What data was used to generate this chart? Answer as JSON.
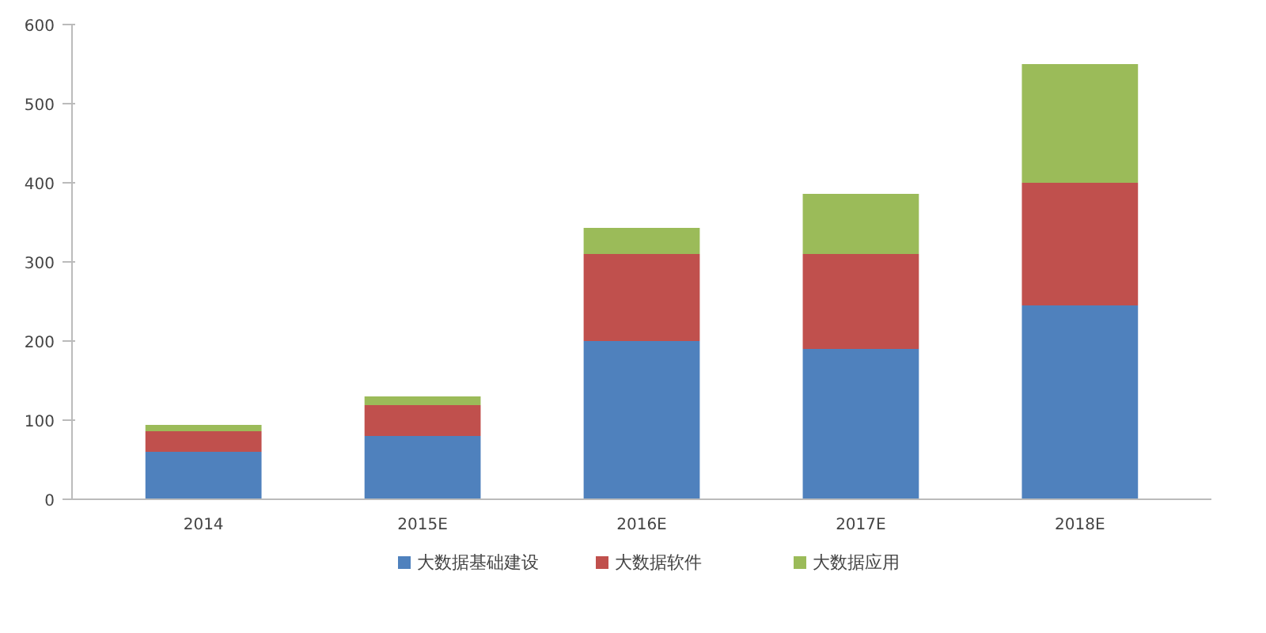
{
  "chart_data": {
    "type": "bar",
    "stacked": true,
    "categories": [
      "2014",
      "2015E",
      "2016E",
      "2017E",
      "2018E"
    ],
    "series": [
      {
        "name": "大数据基础建设",
        "color": "#4f81bd",
        "values": [
          60,
          80,
          200,
          190,
          245
        ]
      },
      {
        "name": "大数据软件",
        "color": "#c0504d",
        "values": [
          26,
          39,
          110,
          120,
          155
        ]
      },
      {
        "name": "大数据应用",
        "color": "#9bbb59",
        "values": [
          8,
          11,
          33,
          76,
          150
        ]
      }
    ],
    "ylim": [
      0,
      600
    ],
    "yticks": [
      0,
      100,
      200,
      300,
      400,
      500,
      600
    ],
    "grid": false,
    "legend": "bottom"
  }
}
